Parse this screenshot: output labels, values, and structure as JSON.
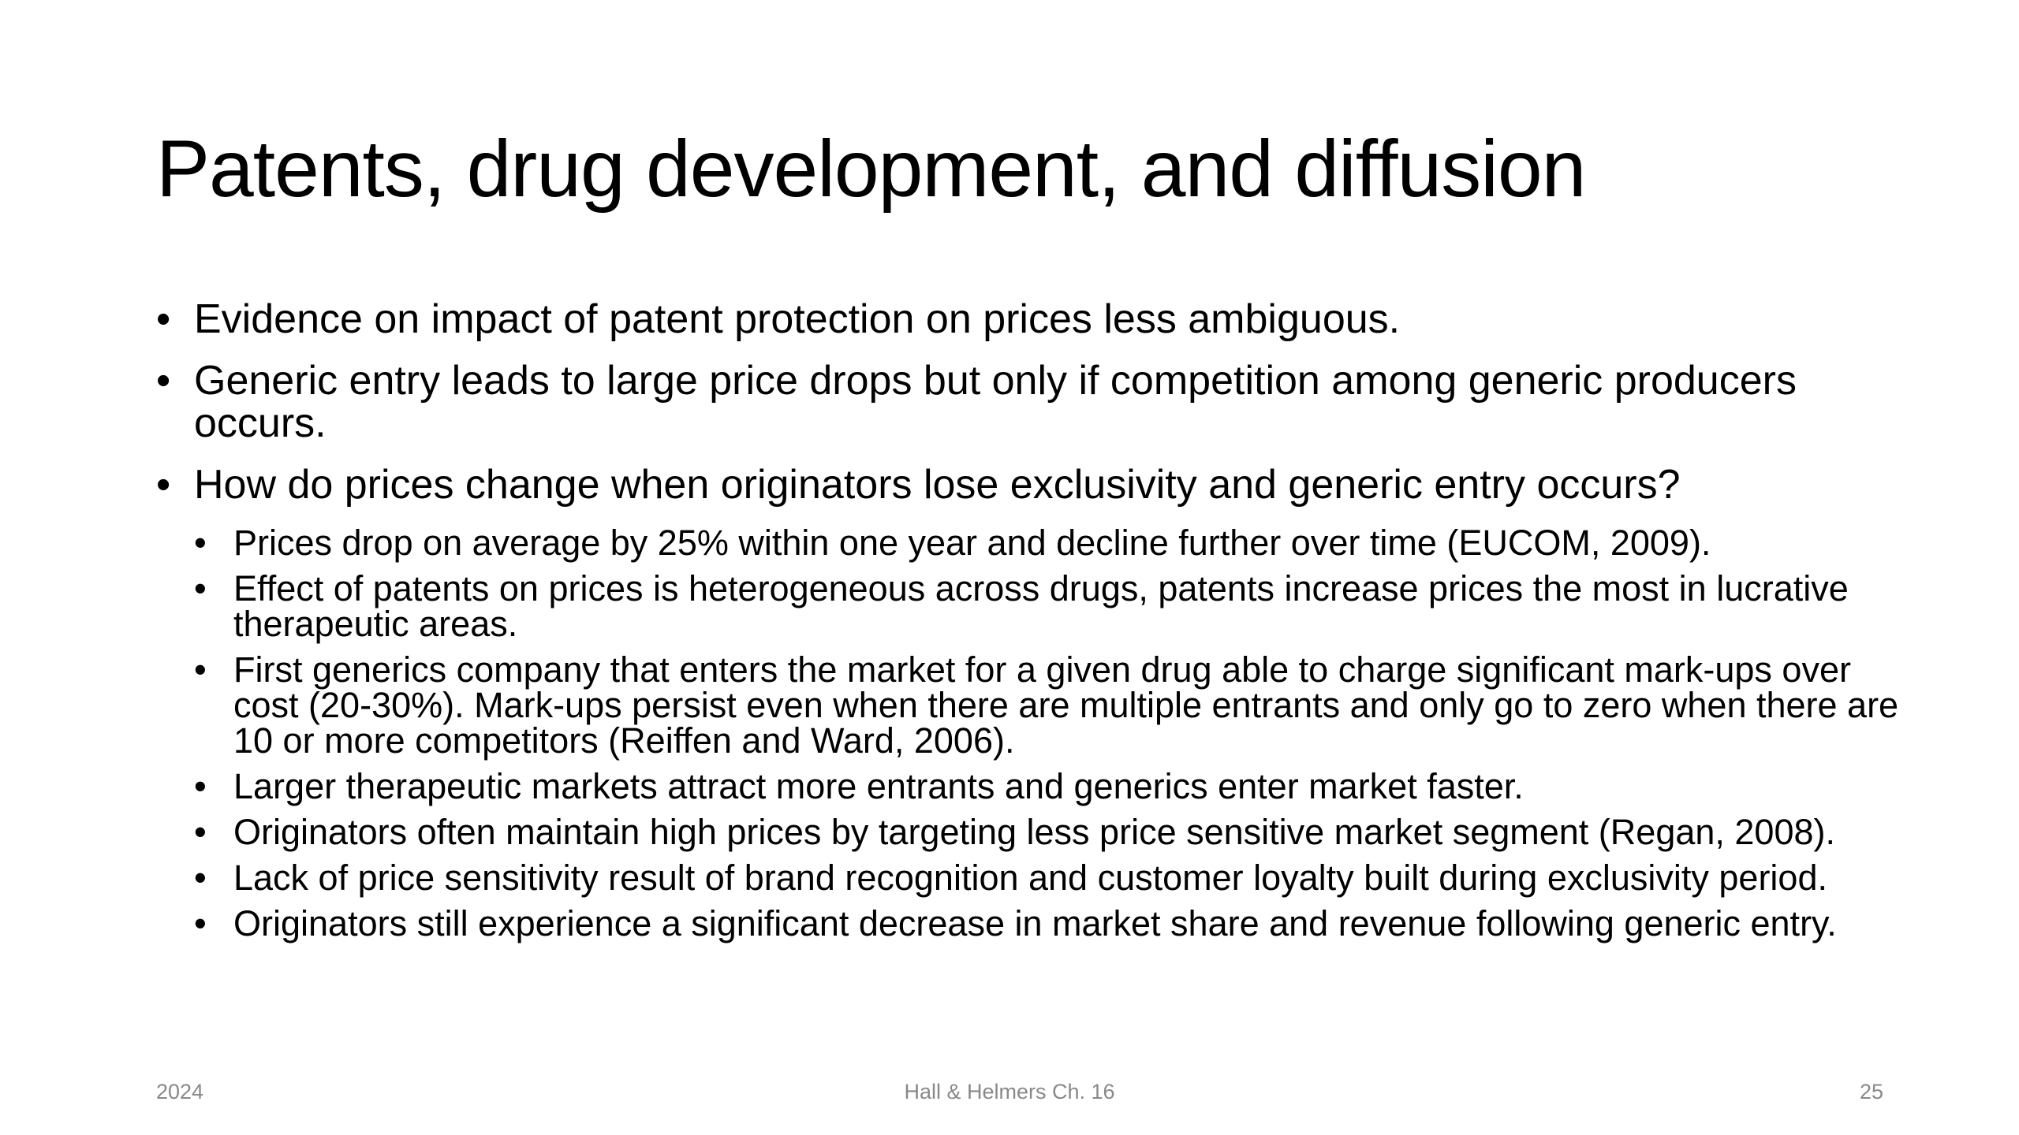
{
  "slide": {
    "title": "Patents, drug development, and diffusion",
    "bullet_glyph": "•",
    "bullets": [
      {
        "text": "Evidence on impact of patent protection on prices less ambiguous."
      },
      {
        "text": "Generic entry leads to large price drops but only if competition among generic producers occurs."
      },
      {
        "text": "How do prices change when originators lose exclusivity and generic entry occurs?",
        "subbullets": [
          "Prices drop on average by 25% within one year and decline further over time (EUCOM, 2009).",
          "Effect of patents on prices is heterogeneous across drugs, patents increase prices the most in lucrative therapeutic areas.",
          "First generics company that enters the market for a given drug able to charge significant mark-ups over cost (20-30%). Mark-ups persist even when there are multiple entrants and only go to zero when there are 10 or more competitors (Reiffen and Ward, 2006).",
          "Larger therapeutic markets attract more entrants and generics enter market faster.",
          "Originators often maintain high prices by targeting less price sensitive market segment (Regan, 2008).",
          "Lack of price sensitivity result of brand recognition and customer loyalty built during exclusivity period.",
          "Originators still experience a significant decrease in market share and revenue following generic entry."
        ]
      }
    ]
  },
  "footer": {
    "left": "2024",
    "center": "Hall & Helmers Ch. 16",
    "right": "25"
  },
  "colors": {
    "text": "#000000",
    "footer_text": "#898989",
    "background": "#ffffff"
  }
}
